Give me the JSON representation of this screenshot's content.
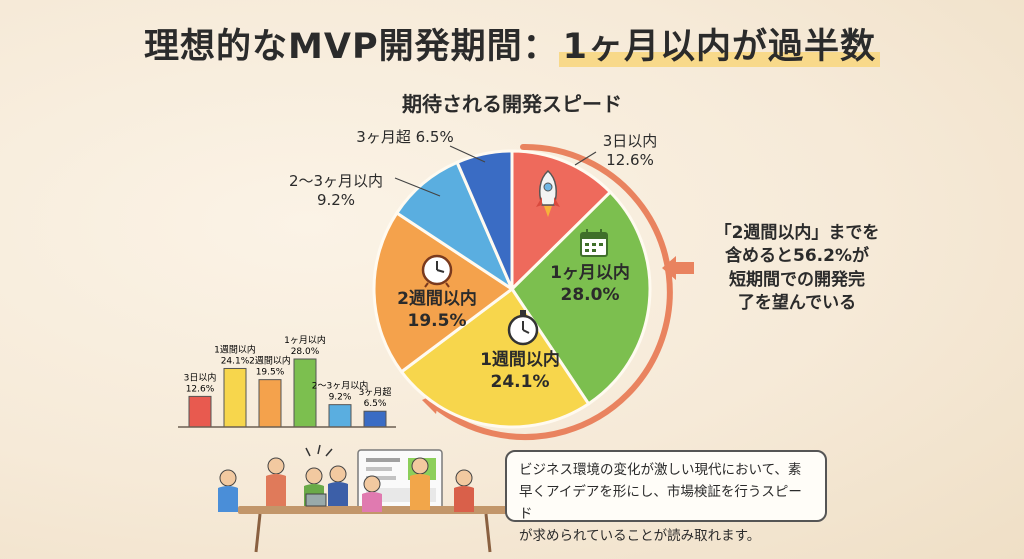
{
  "title_main": "理想的なMVP開発期間：",
  "title_highlight": "1ヶ月以内が過半数",
  "chart_data": {
    "type": "pie",
    "title": "期待される開発スピード",
    "categories": [
      "3日以内",
      "1ヶ月以内",
      "1週間以内",
      "2週間以内",
      "2〜3ヶ月以内",
      "3ヶ月超"
    ],
    "values": [
      12.6,
      28.0,
      24.1,
      19.5,
      9.2,
      6.5
    ],
    "colors": [
      "#ee6a5c",
      "#7cbf4f",
      "#f7d64c",
      "#f4a24c",
      "#5aaee0",
      "#3a6cc4"
    ],
    "bar_mini": {
      "type": "bar",
      "categories": [
        "3日以内",
        "1週間以内",
        "2週間以内",
        "1ヶ月以内",
        "2〜3ヶ月以内",
        "3ヶ月超"
      ],
      "values": [
        12.6,
        24.1,
        19.5,
        28.0,
        9.2,
        6.5
      ],
      "colors": [
        "#e85a4f",
        "#f7d64c",
        "#f4a24c",
        "#7cbf4f",
        "#5aaee0",
        "#3a6cc4"
      ]
    }
  },
  "note": {
    "line1": "「2週間以内」までを",
    "line2": "含めると56.2%が",
    "line3": "短期間での開発完",
    "line4": "了を望んでいる"
  },
  "bubble": {
    "line1": "ビジネス環境の変化が激しい現代において、素",
    "line2": "早くアイデアを形にし、市場検証を行うスピード",
    "line3": "が求められていることが読み取れます。"
  },
  "icons": [
    "rocket-icon",
    "calendar-icon",
    "stopwatch-icon",
    "clock-icon"
  ]
}
